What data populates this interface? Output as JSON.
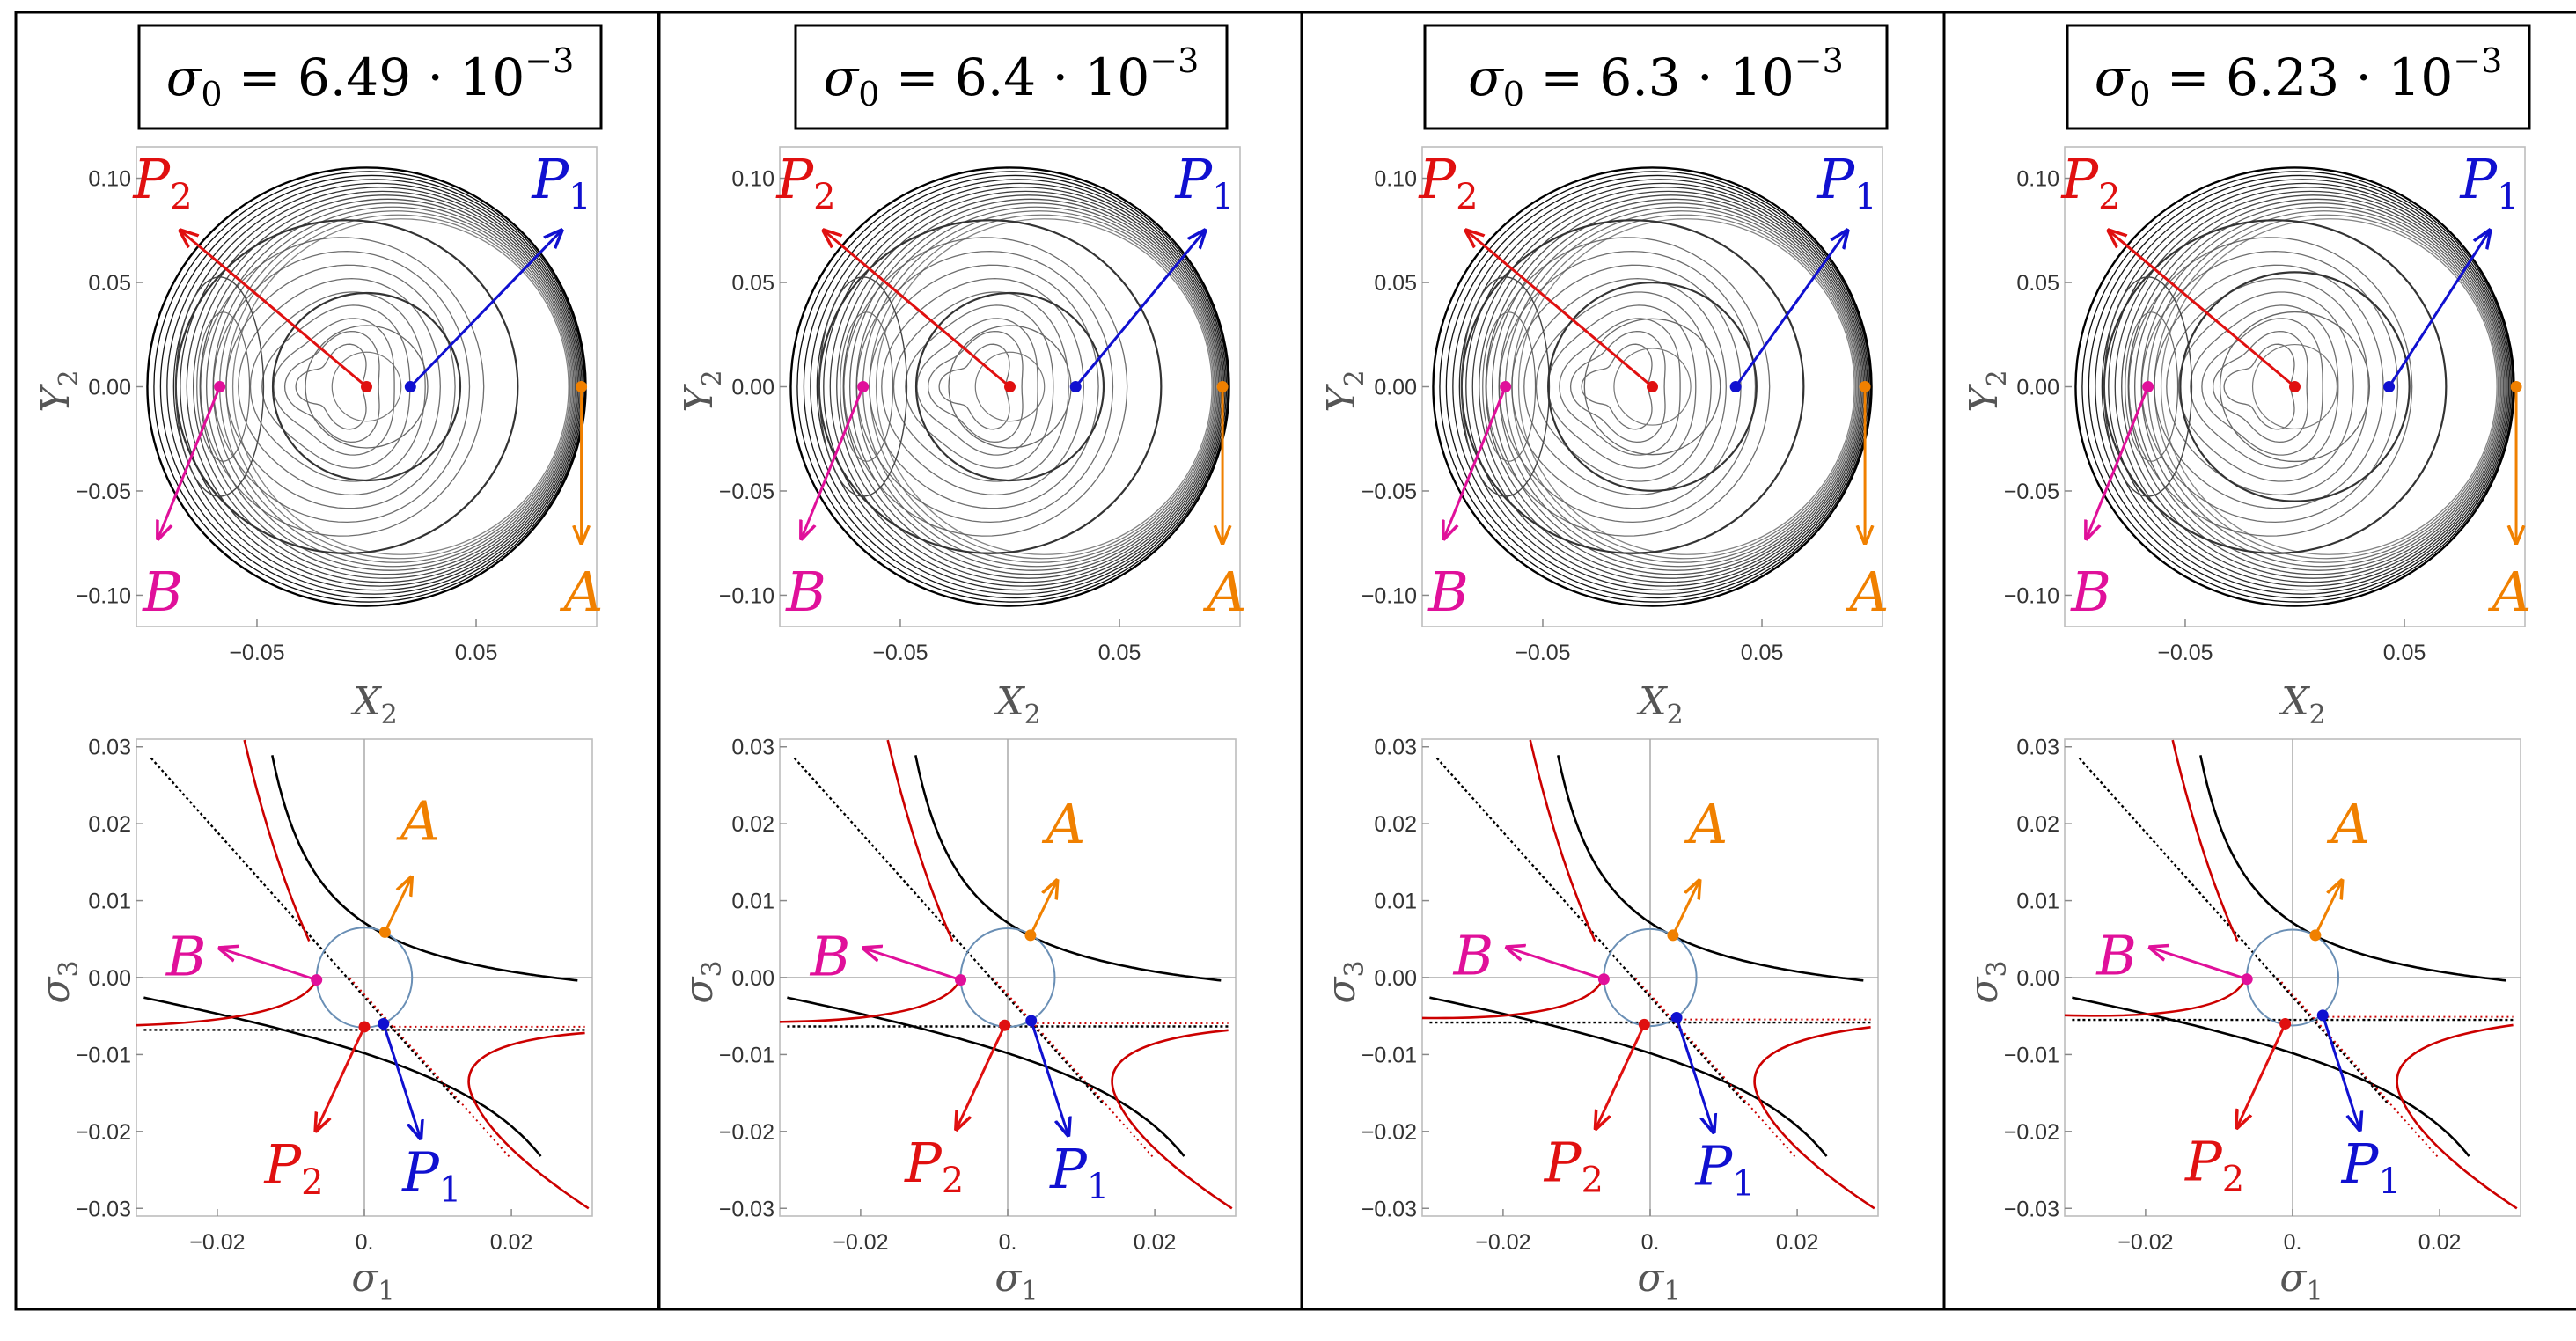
{
  "colors": {
    "P1": "#1010d0",
    "P2": "#e01010",
    "A": "#f08000",
    "B": "#e0109a",
    "curve_red": "#cc0000",
    "curve_black": "#000000",
    "circle": "#6a8fb5"
  },
  "labels": {
    "P1": "P",
    "P1_sub": "1",
    "P2": "P",
    "P2_sub": "2",
    "A": "A",
    "B": "B"
  },
  "chart_data": [
    {
      "panel": 1,
      "title": "σ₀ = 6.49 · 10⁻³",
      "title_main": "σ",
      "title_sub": "0",
      "title_eq": " = 6.49 · 10",
      "title_exp": "−3",
      "top": {
        "type": "contour",
        "xlabel": "X",
        "xlabel_sub": "2",
        "ylabel": "Y",
        "ylabel_sub": "2",
        "xticks": [
          "−0.05",
          "0.05"
        ],
        "xtick_values": [
          -0.05,
          0.05
        ],
        "yticks": [
          "0.10",
          "0.05",
          "0.00",
          "−0.05",
          "−0.10"
        ],
        "ytick_values": [
          0.1,
          0.05,
          0.0,
          -0.05,
          -0.1
        ],
        "xlim": [
          -0.105,
          0.105
        ],
        "ylim": [
          -0.115,
          0.115
        ],
        "points": {
          "P2": [
            0.0,
            0.0
          ],
          "P1": [
            0.02,
            0.0
          ],
          "B": [
            -0.067,
            0.0
          ],
          "A": [
            0.098,
            0.0
          ]
        }
      },
      "bottom": {
        "type": "line",
        "xlabel": "σ",
        "xlabel_sub": "1",
        "ylabel": "σ",
        "ylabel_sub": "3",
        "xticks": [
          "−0.02",
          "0.",
          "0.02"
        ],
        "xtick_values": [
          -0.02,
          0.0,
          0.02
        ],
        "yticks": [
          "0.03",
          "0.02",
          "0.01",
          "0.00",
          "−0.01",
          "−0.02",
          "−0.03"
        ],
        "ytick_values": [
          0.03,
          0.02,
          0.01,
          0.0,
          -0.01,
          -0.02,
          -0.03
        ],
        "xlim": [
          -0.031,
          0.031
        ],
        "ylim": [
          -0.031,
          0.031
        ],
        "circle_radius": 0.00649,
        "points": {
          "A": [
            0.0028,
            0.0059
          ],
          "B": [
            -0.0065,
            -0.0003
          ],
          "P2": [
            0.0,
            -0.0064
          ],
          "P1": [
            0.0026,
            -0.006
          ]
        }
      }
    },
    {
      "panel": 2,
      "title": "σ₀ = 6.4 · 10⁻³",
      "title_main": "σ",
      "title_sub": "0",
      "title_eq": " = 6.4 · 10",
      "title_exp": "−3",
      "top": {
        "type": "contour",
        "xlabel": "X",
        "xlabel_sub": "2",
        "ylabel": "Y",
        "ylabel_sub": "2",
        "xticks": [
          "−0.05",
          "0.05"
        ],
        "xtick_values": [
          -0.05,
          0.05
        ],
        "yticks": [
          "0.10",
          "0.05",
          "0.00",
          "−0.05",
          "−0.10"
        ],
        "ytick_values": [
          0.1,
          0.05,
          0.0,
          -0.05,
          -0.1
        ],
        "xlim": [
          -0.105,
          0.105
        ],
        "ylim": [
          -0.115,
          0.115
        ],
        "points": {
          "P2": [
            0.0,
            0.0
          ],
          "P1": [
            0.03,
            0.0
          ],
          "B": [
            -0.067,
            0.0
          ],
          "A": [
            0.097,
            0.0
          ]
        }
      },
      "bottom": {
        "type": "line",
        "xlabel": "σ",
        "xlabel_sub": "1",
        "ylabel": "σ",
        "ylabel_sub": "3",
        "xticks": [
          "−0.02",
          "0.",
          "0.02"
        ],
        "xtick_values": [
          -0.02,
          0.0,
          0.02
        ],
        "yticks": [
          "0.03",
          "0.02",
          "0.01",
          "0.00",
          "−0.01",
          "−0.02",
          "−0.03"
        ],
        "ytick_values": [
          0.03,
          0.02,
          0.01,
          0.0,
          -0.01,
          -0.02,
          -0.03
        ],
        "xlim": [
          -0.031,
          0.031
        ],
        "ylim": [
          -0.031,
          0.031
        ],
        "circle_radius": 0.0064,
        "points": {
          "A": [
            0.0031,
            0.0055
          ],
          "B": [
            -0.0064,
            -0.0003
          ],
          "P2": [
            -0.0004,
            -0.0062
          ],
          "P1": [
            0.0032,
            -0.0056
          ]
        }
      }
    },
    {
      "panel": 3,
      "title": "σ₀ = 6.3 · 10⁻³",
      "title_main": "σ",
      "title_sub": "0",
      "title_eq": " = 6.3 · 10",
      "title_exp": "−3",
      "top": {
        "type": "contour",
        "xlabel": "X",
        "xlabel_sub": "2",
        "ylabel": "Y",
        "ylabel_sub": "2",
        "xticks": [
          "−0.05",
          "0.05"
        ],
        "xtick_values": [
          -0.05,
          0.05
        ],
        "yticks": [
          "0.10",
          "0.05",
          "0.00",
          "−0.05",
          "−0.10"
        ],
        "ytick_values": [
          0.1,
          0.05,
          0.0,
          -0.05,
          -0.1
        ],
        "xlim": [
          -0.105,
          0.105
        ],
        "ylim": [
          -0.115,
          0.115
        ],
        "points": {
          "P2": [
            0.0,
            0.0
          ],
          "P1": [
            0.038,
            0.0
          ],
          "B": [
            -0.067,
            0.0
          ],
          "A": [
            0.097,
            0.0
          ]
        }
      },
      "bottom": {
        "type": "line",
        "xlabel": "σ",
        "xlabel_sub": "1",
        "ylabel": "σ",
        "ylabel_sub": "3",
        "xticks": [
          "−0.02",
          "0.",
          "0.02"
        ],
        "xtick_values": [
          -0.02,
          0.0,
          0.02
        ],
        "yticks": [
          "0.03",
          "0.02",
          "0.01",
          "0.00",
          "−0.01",
          "−0.02",
          "−0.03"
        ],
        "ytick_values": [
          0.03,
          0.02,
          0.01,
          0.0,
          -0.01,
          -0.02,
          -0.03
        ],
        "xlim": [
          -0.031,
          0.031
        ],
        "ylim": [
          -0.031,
          0.031
        ],
        "circle_radius": 0.0063,
        "points": {
          "A": [
            0.0031,
            0.0055
          ],
          "B": [
            -0.0063,
            -0.0002
          ],
          "P2": [
            -0.0008,
            -0.0061
          ],
          "P1": [
            0.0036,
            -0.0052
          ]
        }
      }
    },
    {
      "panel": 4,
      "title": "σ₀ = 6.23 · 10⁻³",
      "title_main": "σ",
      "title_sub": "0",
      "title_eq": " = 6.23 · 10",
      "title_exp": "−3",
      "top": {
        "type": "contour",
        "xlabel": "X",
        "xlabel_sub": "2",
        "ylabel": "Y",
        "ylabel_sub": "2",
        "xticks": [
          "−0.05",
          "0.05"
        ],
        "xtick_values": [
          -0.05,
          0.05
        ],
        "yticks": [
          "0.10",
          "0.05",
          "0.00",
          "−0.05",
          "−0.10"
        ],
        "ytick_values": [
          0.1,
          0.05,
          0.0,
          -0.05,
          -0.1
        ],
        "xlim": [
          -0.105,
          0.105
        ],
        "ylim": [
          -0.115,
          0.115
        ],
        "points": {
          "P2": [
            0.0,
            0.0
          ],
          "P1": [
            0.043,
            0.0
          ],
          "B": [
            -0.067,
            0.0
          ],
          "A": [
            0.101,
            0.0
          ]
        }
      },
      "bottom": {
        "type": "line",
        "xlabel": "σ",
        "xlabel_sub": "1",
        "ylabel": "σ",
        "ylabel_sub": "3",
        "xticks": [
          "−0.02",
          "0.",
          "0.02"
        ],
        "xtick_values": [
          -0.02,
          0.0,
          0.02
        ],
        "yticks": [
          "0.03",
          "0.02",
          "0.01",
          "0.00",
          "−0.01",
          "−0.02",
          "−0.03"
        ],
        "ytick_values": [
          0.03,
          0.02,
          0.01,
          0.0,
          -0.01,
          -0.02,
          -0.03
        ],
        "xlim": [
          -0.031,
          0.031
        ],
        "ylim": [
          -0.031,
          0.031
        ],
        "circle_radius": 0.00623,
        "points": {
          "A": [
            0.0031,
            0.0055
          ],
          "B": [
            -0.0062,
            -0.0002
          ],
          "P2": [
            -0.001,
            -0.006
          ],
          "P1": [
            0.0041,
            -0.0049
          ]
        }
      }
    }
  ]
}
